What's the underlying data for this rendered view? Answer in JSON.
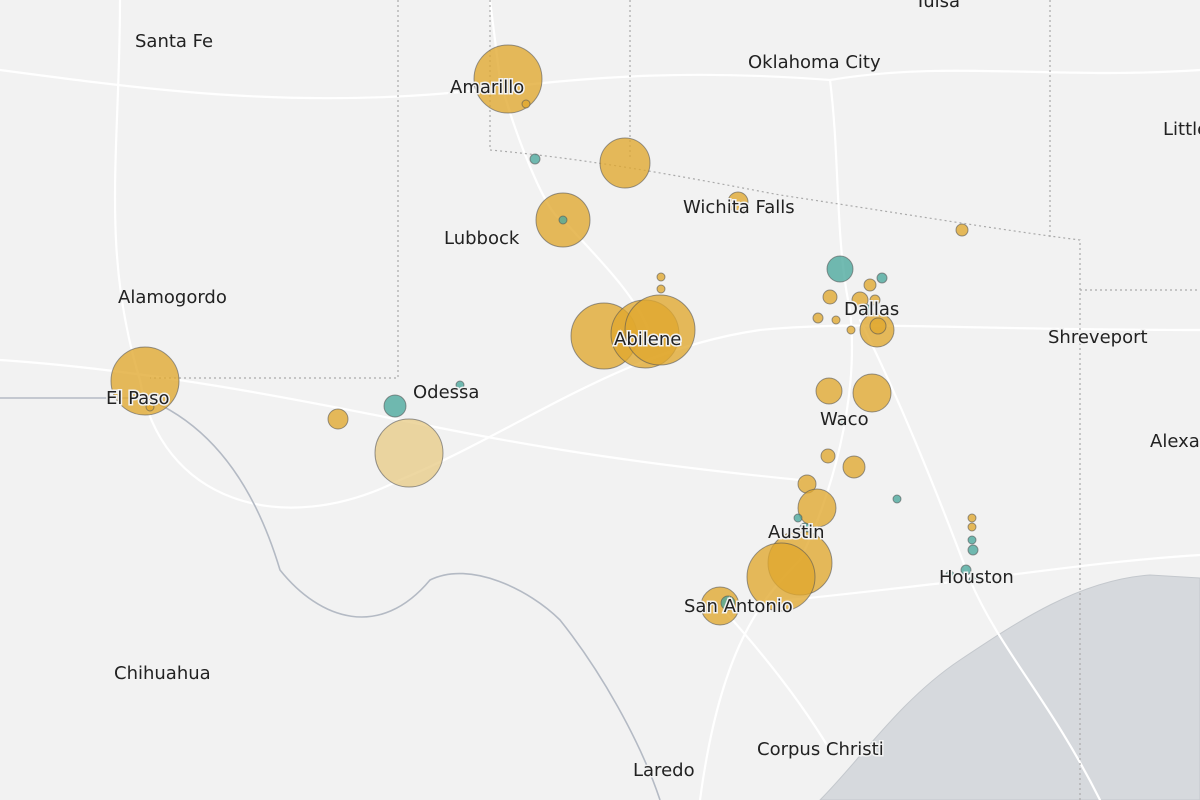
{
  "map": {
    "labels": [
      "Tulsa",
      "Santa Fe",
      "Oklahoma City",
      "Amarillo",
      "Little Rock",
      "Wichita Falls",
      "Lubbock",
      "Alamogordo",
      "Dallas",
      "Shreveport",
      "Odessa",
      "Abilene",
      "El Paso",
      "Waco",
      "Alexandria",
      "Austin",
      "Houston",
      "San Antonio",
      "Chihuahua",
      "Corpus Christi",
      "Laredo"
    ]
  }
}
